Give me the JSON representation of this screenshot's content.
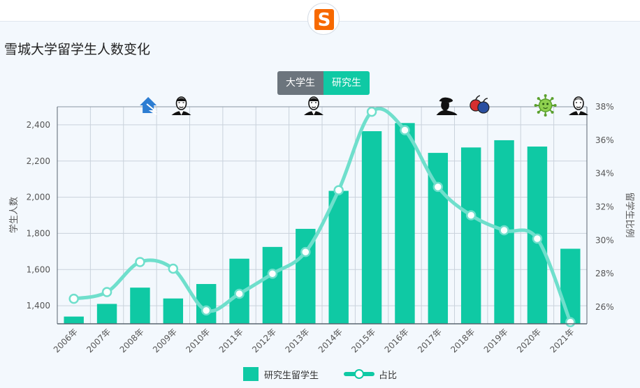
{
  "page": {
    "title": "雪城大学留学生人数变化",
    "logo_letter": "S",
    "toggle": {
      "undergrad_label": "大学生",
      "grad_label": "研究生",
      "active": "研究生"
    }
  },
  "colors": {
    "bar": "#0fc9a4",
    "line": "#6fdfcc",
    "marker_stroke": "#6fdfcc",
    "grid": "#c9d2dc",
    "axis_text": "#555555",
    "logo": "#f76900"
  },
  "icons": [
    {
      "year": "2008年",
      "name": "housing-crisis-icon"
    },
    {
      "year": "2009年",
      "name": "obama-portrait-icon"
    },
    {
      "year": "2013年",
      "name": "obama-portrait-icon"
    },
    {
      "year": "2017年",
      "name": "trump-portrait-icon"
    },
    {
      "year": "2018年",
      "name": "trade-war-bomb-icon"
    },
    {
      "year": "2020年",
      "name": "virus-icon"
    },
    {
      "year": "2021年",
      "name": "biden-portrait-icon"
    }
  ],
  "chart_data": {
    "type": "bar",
    "categories": [
      "2006年",
      "2007年",
      "2008年",
      "2009年",
      "2010年",
      "2011年",
      "2012年",
      "2013年",
      "2014年",
      "2015年",
      "2016年",
      "2017年",
      "2018年",
      "2019年",
      "2020年",
      "2021年"
    ],
    "series": [
      {
        "name": "研究生留学生",
        "type": "bar",
        "axis": "left",
        "values": [
          1340,
          1410,
          1500,
          1440,
          1520,
          1660,
          1725,
          1825,
          2035,
          2365,
          2410,
          2245,
          2275,
          2315,
          2280,
          1715
        ]
      },
      {
        "name": "占比",
        "type": "line",
        "axis": "right",
        "values": [
          26.5,
          26.9,
          28.7,
          28.3,
          25.8,
          26.8,
          28.0,
          29.3,
          33.0,
          37.7,
          36.6,
          33.2,
          31.5,
          30.6,
          30.1,
          25.1
        ]
      }
    ],
    "ylabel": "学生人数",
    "ylabel_right": "留学生比例",
    "ylim": [
      1300,
      2500
    ],
    "yticks": [
      1400,
      1600,
      1800,
      2000,
      2200,
      2400
    ],
    "ytick_labels": [
      "1,400",
      "1,600",
      "1,800",
      "2,000",
      "2,200",
      "2,400"
    ],
    "ylim_right": [
      25,
      38
    ],
    "yticks_right": [
      26,
      28,
      30,
      32,
      34,
      36,
      38
    ],
    "ytick_labels_right": [
      "26%",
      "28%",
      "30%",
      "32%",
      "34%",
      "36%",
      "38%"
    ],
    "grid": true,
    "legend_position": "bottom-center"
  }
}
